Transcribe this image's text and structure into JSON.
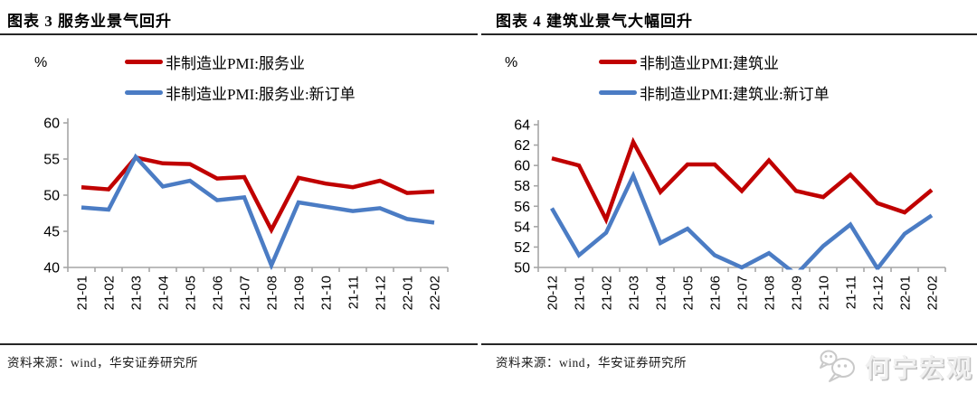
{
  "chart_data": [
    {
      "type": "line",
      "title": "图表 3 服务业景气回升",
      "unit": "%",
      "categories": [
        "21-01",
        "21-02",
        "21-03",
        "21-04",
        "21-05",
        "21-06",
        "21-07",
        "21-08",
        "21-09",
        "21-10",
        "21-11",
        "21-12",
        "22-01",
        "22-02"
      ],
      "series": [
        {
          "name": "非制造业PMI:服务业",
          "color": "#C00000",
          "values": [
            51.1,
            50.8,
            55.2,
            54.4,
            54.3,
            52.3,
            52.5,
            45.2,
            52.4,
            51.6,
            51.1,
            52.0,
            50.3,
            50.5
          ]
        },
        {
          "name": "非制造业PMI:服务业:新订单",
          "color": "#4B7CC4",
          "values": [
            48.3,
            48.0,
            55.3,
            51.2,
            52.0,
            49.3,
            49.7,
            40.3,
            49.0,
            48.4,
            47.8,
            48.2,
            46.7,
            46.2
          ]
        }
      ],
      "ylim": [
        40,
        60
      ],
      "ytick_step": 5,
      "grid": false,
      "legend_position": "top",
      "source": "资料来源：wind，华安证券研究所"
    },
    {
      "type": "line",
      "title": "图表 4 建筑业景气大幅回升",
      "unit": "%",
      "categories": [
        "20-12",
        "21-01",
        "21-02",
        "21-03",
        "21-04",
        "21-05",
        "21-06",
        "21-07",
        "21-08",
        "21-09",
        "21-10",
        "21-11",
        "21-12",
        "22-01",
        "22-02"
      ],
      "series": [
        {
          "name": "非制造业PMI:建筑业",
          "color": "#C00000",
          "values": [
            60.7,
            60.0,
            54.7,
            62.3,
            57.4,
            60.1,
            60.1,
            57.5,
            60.5,
            57.5,
            56.9,
            59.1,
            56.3,
            55.4,
            57.6
          ]
        },
        {
          "name": "非制造业PMI:建筑业:新订单",
          "color": "#4B7CC4",
          "values": [
            55.8,
            51.2,
            53.4,
            59.0,
            52.4,
            53.8,
            51.2,
            50.0,
            51.4,
            49.3,
            52.1,
            54.2,
            49.9,
            53.3,
            55.1
          ]
        }
      ],
      "ylim": [
        50,
        64
      ],
      "ytick_step": 2,
      "grid": false,
      "legend_position": "top",
      "source": "资料来源：wind，华安证券研究所"
    }
  ],
  "watermark": {
    "icon": "wechat-icon",
    "text": "何宁宏观"
  }
}
